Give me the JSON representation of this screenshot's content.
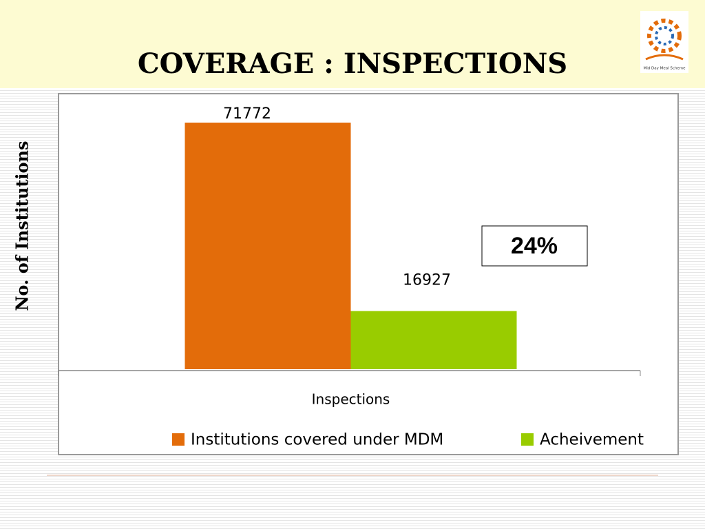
{
  "chart_data": {
    "type": "bar",
    "title": "COVERAGE : INSPECTIONS",
    "y_label": "No. of Institutions",
    "categories": [
      "Inspections"
    ],
    "series": [
      {
        "name": "Institutions covered under MDM",
        "color": "#e36c0a",
        "values": [
          71772
        ]
      },
      {
        "name": "Acheivement",
        "color": "#99cc00",
        "values": [
          16927
        ]
      }
    ],
    "ylim": [
      0,
      80000
    ],
    "annotation": "24%",
    "legend": "bottom"
  },
  "logo": {
    "text": "Mid Day Meal Scheme"
  }
}
